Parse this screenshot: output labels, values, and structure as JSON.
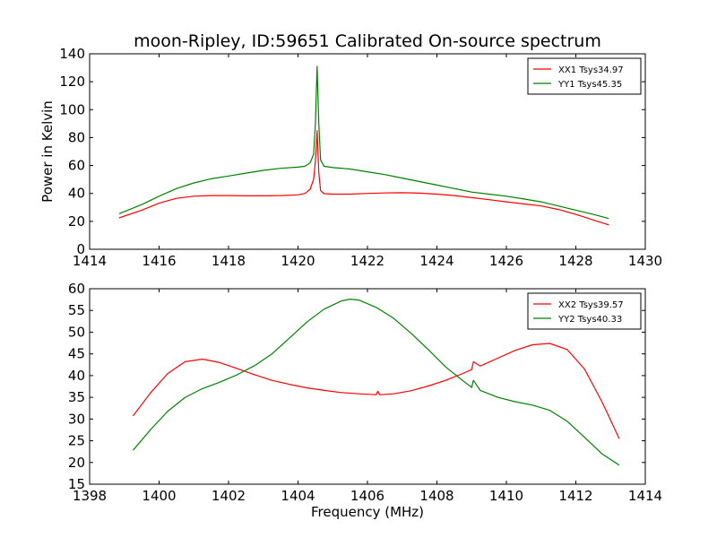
{
  "figure": {
    "title": "moon-Ripley, ID:59651 Calibrated On-source spectrum",
    "background": "#ffffff"
  },
  "chart_data": [
    {
      "type": "line",
      "title": "moon-Ripley, ID:59651 Calibrated On-source spectrum",
      "xlabel": "",
      "ylabel": "Power in Kelvin",
      "xlim": [
        1414,
        1430
      ],
      "ylim": [
        0,
        140
      ],
      "xticks": [
        1414,
        1416,
        1418,
        1420,
        1422,
        1424,
        1426,
        1428,
        1430
      ],
      "yticks": [
        0,
        20,
        40,
        60,
        80,
        100,
        120,
        140
      ],
      "grid": false,
      "legend_position": "top-right",
      "series": [
        {
          "name": "YY1 Tsys45.35",
          "color": "#008000",
          "x": [
            1414.85,
            1415.5,
            1416.0,
            1416.5,
            1417.0,
            1417.5,
            1418.0,
            1418.5,
            1419.0,
            1419.5,
            1420.0,
            1420.2,
            1420.35,
            1420.45,
            1420.5,
            1420.55,
            1420.6,
            1420.65,
            1420.75,
            1421.0,
            1421.5,
            1422.0,
            1422.5,
            1423.0,
            1423.5,
            1424.0,
            1424.5,
            1425.0,
            1425.5,
            1426.0,
            1426.5,
            1427.0,
            1427.5,
            1428.0,
            1428.5,
            1428.95
          ],
          "y": [
            25.5,
            32.0,
            38.0,
            43.5,
            47.5,
            50.5,
            52.5,
            54.5,
            56.5,
            58.0,
            58.8,
            59.5,
            62.0,
            68.0,
            90.0,
            131.0,
            90.0,
            64.0,
            59.5,
            58.5,
            57.5,
            55.5,
            53.5,
            51.0,
            48.5,
            46.0,
            43.5,
            41.0,
            39.5,
            38.0,
            36.0,
            34.0,
            31.0,
            28.0,
            25.0,
            22.0
          ]
        },
        {
          "name": "XX1 Tsys34.97",
          "color": "#ff0000",
          "x": [
            1414.85,
            1415.5,
            1416.0,
            1416.5,
            1417.0,
            1417.5,
            1418.0,
            1418.5,
            1419.0,
            1419.5,
            1420.0,
            1420.2,
            1420.35,
            1420.45,
            1420.5,
            1420.55,
            1420.6,
            1420.65,
            1420.75,
            1421.0,
            1421.5,
            1422.0,
            1422.5,
            1423.0,
            1423.5,
            1424.0,
            1424.5,
            1425.0,
            1425.5,
            1426.0,
            1426.5,
            1427.0,
            1427.5,
            1428.0,
            1428.5,
            1428.95
          ],
          "y": [
            22.5,
            28.0,
            33.0,
            36.5,
            38.0,
            38.5,
            38.5,
            38.3,
            38.3,
            38.5,
            39.0,
            40.0,
            43.0,
            50.0,
            63.0,
            85.0,
            55.0,
            42.0,
            39.8,
            39.5,
            39.5,
            40.0,
            40.3,
            40.5,
            40.2,
            39.5,
            38.5,
            37.0,
            35.5,
            34.0,
            32.5,
            31.0,
            28.5,
            25.0,
            21.0,
            17.5
          ]
        }
      ]
    },
    {
      "type": "line",
      "title": "",
      "xlabel": "Frequency (MHz)",
      "ylabel": "",
      "xlim": [
        1398,
        1414
      ],
      "ylim": [
        15,
        60
      ],
      "xticks": [
        1398,
        1400,
        1402,
        1404,
        1406,
        1408,
        1410,
        1412,
        1414
      ],
      "yticks": [
        15,
        20,
        25,
        30,
        35,
        40,
        45,
        50,
        55,
        60
      ],
      "grid": false,
      "legend_position": "top-right",
      "series": [
        {
          "name": "XX2 Tsys39.57",
          "color": "#ff0000",
          "x": [
            1399.25,
            1399.75,
            1400.25,
            1400.75,
            1401.25,
            1401.75,
            1402.25,
            1402.75,
            1403.25,
            1403.75,
            1404.25,
            1404.75,
            1405.25,
            1405.75,
            1406.25,
            1406.3,
            1406.35,
            1406.75,
            1407.25,
            1407.75,
            1408.25,
            1408.75,
            1409.0,
            1409.05,
            1409.25,
            1409.75,
            1410.25,
            1410.75,
            1411.25,
            1411.75,
            1412.25,
            1412.75,
            1413.25
          ],
          "y": [
            30.7,
            36.0,
            40.5,
            43.2,
            43.8,
            43.0,
            41.6,
            40.2,
            38.9,
            38.0,
            37.2,
            36.6,
            36.1,
            35.8,
            35.6,
            36.4,
            35.6,
            35.8,
            36.5,
            37.6,
            38.9,
            40.5,
            41.4,
            43.2,
            42.2,
            44.0,
            45.8,
            47.1,
            47.4,
            46.0,
            41.5,
            34.0,
            25.5
          ]
        },
        {
          "name": "YY2 Tsys40.33",
          "color": "#008000",
          "x": [
            1399.25,
            1399.75,
            1400.25,
            1400.75,
            1401.25,
            1401.75,
            1402.25,
            1402.75,
            1403.25,
            1403.75,
            1404.25,
            1404.75,
            1405.25,
            1405.5,
            1405.75,
            1406.25,
            1406.75,
            1407.25,
            1407.75,
            1408.25,
            1408.75,
            1409.0,
            1409.05,
            1409.25,
            1409.75,
            1410.25,
            1410.75,
            1411.25,
            1411.75,
            1412.25,
            1412.75,
            1413.25
          ],
          "y": [
            22.8,
            27.5,
            31.8,
            35.0,
            37.0,
            38.5,
            40.2,
            42.3,
            45.0,
            48.6,
            52.3,
            55.3,
            57.2,
            57.6,
            57.4,
            55.7,
            53.2,
            49.8,
            46.0,
            42.0,
            38.8,
            37.3,
            38.9,
            36.6,
            35.0,
            34.0,
            33.2,
            32.0,
            29.5,
            25.8,
            22.0,
            19.4
          ]
        }
      ]
    }
  ]
}
